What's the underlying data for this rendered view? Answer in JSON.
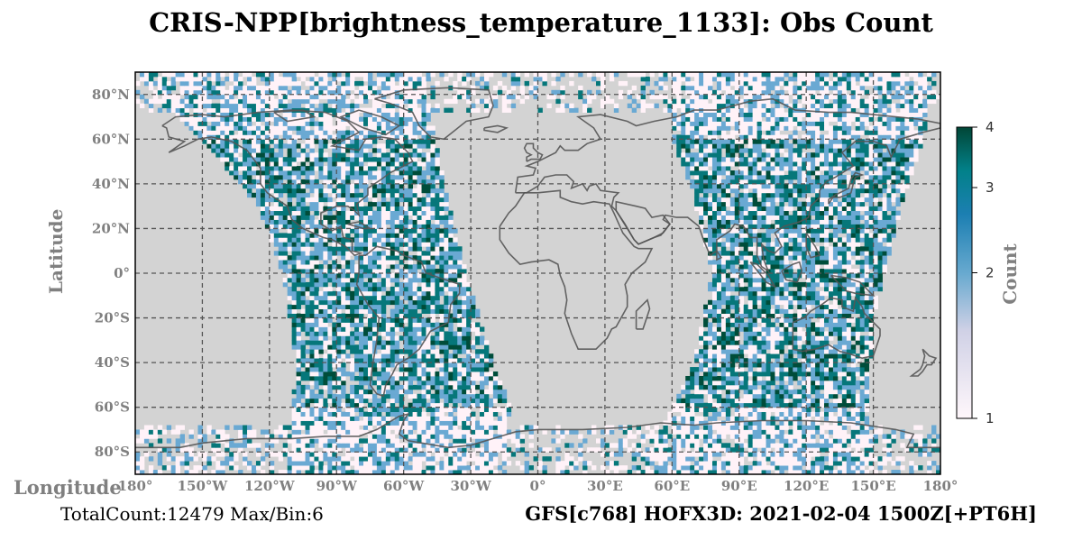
{
  "title": "CRIS-NPP[brightness_temperature_1133]: Obs Count",
  "footer_left": "TotalCount:12479 Max/Bin:6",
  "footer_right": "GFS[c768] HOFX3D: 2021-02-04 1500Z[+PT6H]",
  "colors": {
    "land_ocean_background": "#d3d3d3",
    "coastline": "#555555",
    "grid": "#555555",
    "count_1": "#fff2f8",
    "count_2": "#6aa9d3",
    "count_3": "#06777a",
    "count_4": "#004d3a"
  },
  "chart_data": {
    "type": "heatmap",
    "title": "CRIS-NPP[brightness_temperature_1133]: Obs Count",
    "xlabel": "Longitude",
    "ylabel": "Latitude",
    "xlim": [
      -180,
      180
    ],
    "ylim": [
      -90,
      90
    ],
    "grid": true,
    "x_ticks": [
      -180,
      -150,
      -120,
      -90,
      -60,
      -30,
      0,
      30,
      60,
      90,
      120,
      150,
      180
    ],
    "x_tick_labels": [
      "180°",
      "150°W",
      "120°W",
      "90°W",
      "60°W",
      "30°W",
      "0°",
      "30°E",
      "60°E",
      "90°E",
      "120°E",
      "150°E",
      "180°"
    ],
    "y_ticks": [
      80,
      60,
      40,
      20,
      0,
      -20,
      -40,
      -60,
      -80
    ],
    "y_tick_labels": [
      "80°N",
      "60°N",
      "40°N",
      "20°N",
      "0°",
      "20°S",
      "40°S",
      "60°S",
      "80°S"
    ],
    "colorbar": {
      "label": "Count",
      "min": 1,
      "max": 4,
      "ticks": [
        1,
        2,
        3,
        4
      ],
      "tick_labels": [
        "1",
        "2",
        "3",
        "4"
      ],
      "scale": "log",
      "colormap": "PuBuGn"
    },
    "bin_size_deg": 2,
    "swaths": [
      {
        "name": "western",
        "lat_range": [
          -90,
          90
        ],
        "lon_west_at_lat": [
          [
            -90,
            -112
          ],
          [
            -40,
            -108
          ],
          [
            0,
            -114
          ],
          [
            30,
            -125
          ],
          [
            60,
            -150
          ],
          [
            90,
            -180
          ]
        ],
        "lon_east_at_lat": [
          [
            -90,
            -20
          ],
          [
            -60,
            -12
          ],
          [
            -40,
            -20
          ],
          [
            0,
            -32
          ],
          [
            40,
            -42
          ],
          [
            70,
            -48
          ],
          [
            90,
            -52
          ]
        ]
      },
      {
        "name": "eastern",
        "lat_range": [
          -90,
          90
        ],
        "lon_west_at_lat": [
          [
            -90,
            40
          ],
          [
            -70,
            55
          ],
          [
            -40,
            70
          ],
          [
            0,
            78
          ],
          [
            40,
            68
          ],
          [
            60,
            60
          ],
          [
            90,
            60
          ]
        ],
        "lon_east_at_lat": [
          [
            -90,
            150
          ],
          [
            -60,
            148
          ],
          [
            -20,
            150
          ],
          [
            20,
            160
          ],
          [
            60,
            172
          ],
          [
            90,
            180
          ]
        ]
      }
    ],
    "polar_band_lat": [
      [
        -90,
        -68
      ],
      [
        72,
        90
      ]
    ]
  }
}
